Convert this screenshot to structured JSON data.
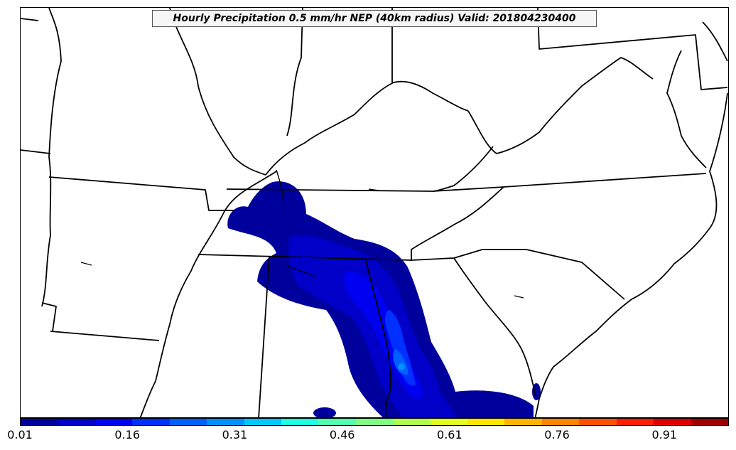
{
  "title": "Hourly Precipitation 0.5 mm/hr NEP (40km radius) Valid: 201804230400",
  "map": {
    "region": "Southeastern United States",
    "field": "neighborhood exceedance probability",
    "state_border_color": "#000000",
    "background_color": "#ffffff"
  },
  "colorbar": {
    "min": 0.01,
    "max": 1.0,
    "tick_labels": [
      "0.01",
      "0.16",
      "0.31",
      "0.46",
      "0.61",
      "0.76",
      "0.91"
    ],
    "colors": [
      "#00009c",
      "#0000c8",
      "#0000f0",
      "#0030ff",
      "#0060ff",
      "#0090ff",
      "#00c8ff",
      "#1effe1",
      "#50ffaf",
      "#7dff82",
      "#afff50",
      "#e1ff1e",
      "#ffe600",
      "#ffb400",
      "#ff8200",
      "#ff5000",
      "#ff1e00",
      "#dc0000",
      "#a00000"
    ]
  }
}
